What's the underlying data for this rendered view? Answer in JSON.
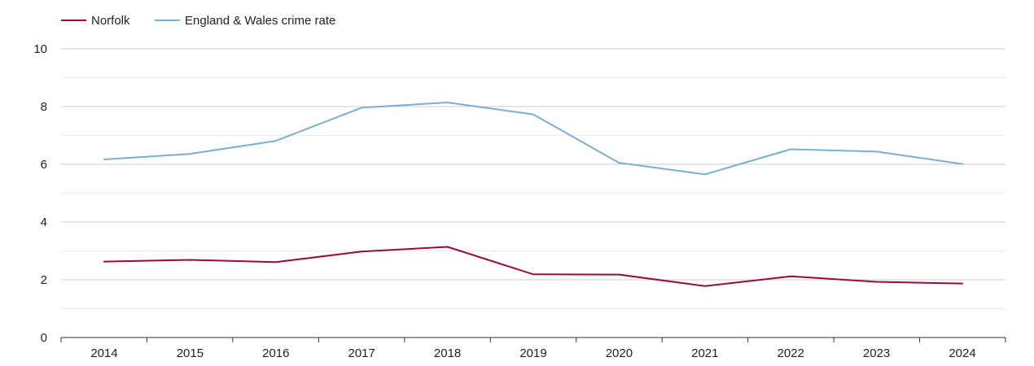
{
  "chart_data": {
    "type": "line",
    "title": "",
    "xlabel": "",
    "ylabel": "",
    "categories": [
      "2014",
      "2015",
      "2016",
      "2017",
      "2018",
      "2019",
      "2020",
      "2021",
      "2022",
      "2023",
      "2024"
    ],
    "ylim": [
      0,
      10
    ],
    "yticks": [
      "0",
      "2",
      "4",
      "6",
      "8",
      "10"
    ],
    "grid": true,
    "legend_position": "top-left",
    "series": [
      {
        "name": "Norfolk",
        "color": "#9b0a3a",
        "values": [
          2.63,
          2.69,
          2.61,
          2.98,
          3.14,
          2.19,
          2.18,
          1.78,
          2.12,
          1.93,
          1.87
        ]
      },
      {
        "name": "England & Wales crime rate",
        "color": "#7aafcf",
        "values": [
          6.17,
          6.36,
          6.81,
          7.96,
          8.14,
          7.73,
          6.05,
          5.65,
          6.52,
          6.44,
          6.01
        ]
      }
    ]
  }
}
